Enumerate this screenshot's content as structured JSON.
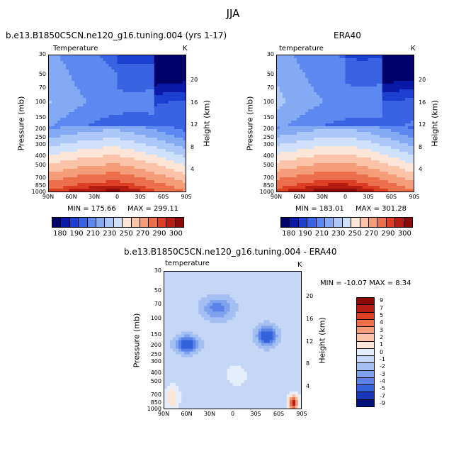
{
  "figure": {
    "title": "JJA"
  },
  "colors": {
    "temp_scale": [
      "#00006a",
      "#0a1aa8",
      "#1d3fd0",
      "#3a63e3",
      "#5d88ef",
      "#85aaf4",
      "#acc8f8",
      "#d0e1fb",
      "#fde5d8",
      "#fbc4a9",
      "#f59d7a",
      "#ec6f4c",
      "#dc3f24",
      "#b51c12",
      "#8b0a08"
    ],
    "diff_scale": [
      "#8b0a08",
      "#b51c12",
      "#dc3f24",
      "#ec6f4c",
      "#f59d7a",
      "#fbc4a9",
      "#fde5d8",
      "#e6eefc",
      "#c4d7f7",
      "#a4c0f3",
      "#7ea2ee",
      "#5a82e8",
      "#3461dc",
      "#1838b8",
      "#00127a"
    ]
  },
  "chart_data": [
    {
      "type": "heatmap",
      "title": "b.e13.B1850C5CN.ne120_g16.tuning.004 (yrs 1-17)",
      "subtitle_left": "Temperature",
      "units": "K",
      "xlabel": "",
      "ylabel": "Pressure (mb)",
      "y2label": "Height (km)",
      "x_ticks": [
        "90N",
        "60N",
        "30N",
        "0",
        "30S",
        "60S",
        "90S"
      ],
      "y_ticks": [
        "30",
        "50",
        "70",
        "100",
        "150",
        "200",
        "250",
        "300",
        "400",
        "500",
        "700",
        "850",
        "1000"
      ],
      "y2_ticks": [
        "20",
        "16",
        "12",
        "8",
        "4"
      ],
      "min_label": "MIN = 175.66",
      "max_label": "MAX = 299.11",
      "min": 175.66,
      "max": 299.11,
      "colorbar_labels": [
        "180",
        "190",
        "210",
        "230",
        "250",
        "270",
        "290",
        "300"
      ]
    },
    {
      "type": "heatmap",
      "title": "ERA40",
      "subtitle_left": "temperature",
      "units": "K",
      "xlabel": "",
      "ylabel": "Pressure (mb)",
      "y2label": "Height (km)",
      "x_ticks": [
        "90N",
        "60N",
        "30N",
        "0",
        "30S",
        "60S",
        "90S"
      ],
      "y_ticks": [
        "30",
        "50",
        "70",
        "100",
        "150",
        "200",
        "250",
        "300",
        "400",
        "500",
        "700",
        "850",
        "1000"
      ],
      "y2_ticks": [
        "20",
        "16",
        "12",
        "8",
        "4"
      ],
      "min_label": "MIN = 183.01",
      "max_label": "MAX = 301.28",
      "min": 183.01,
      "max": 301.28,
      "colorbar_labels": [
        "180",
        "190",
        "210",
        "230",
        "250",
        "270",
        "290",
        "300"
      ]
    },
    {
      "type": "heatmap",
      "title": "b.e13.B1850C5CN.ne120_g16.tuning.004 - ERA40",
      "subtitle_left": "temperature",
      "units": "K",
      "xlabel": "",
      "ylabel": "Pressure (mb)",
      "y2label": "Height (km)",
      "x_ticks": [
        "90N",
        "60N",
        "30N",
        "0",
        "30S",
        "60S",
        "90S"
      ],
      "y_ticks": [
        "30",
        "50",
        "70",
        "100",
        "150",
        "200",
        "250",
        "300",
        "400",
        "500",
        "700",
        "850",
        "1000"
      ],
      "y2_ticks": [
        "20",
        "16",
        "12",
        "8",
        "4"
      ],
      "minmax_label": "MIN = -10.07   MAX =    8.34",
      "min": -10.07,
      "max": 8.34,
      "colorbar_labels": [
        "9",
        "7",
        "5",
        "4",
        "3",
        "2",
        "1",
        "0",
        "-1",
        "-2",
        "-3",
        "-4",
        "-5",
        "-7",
        "-9"
      ]
    }
  ]
}
